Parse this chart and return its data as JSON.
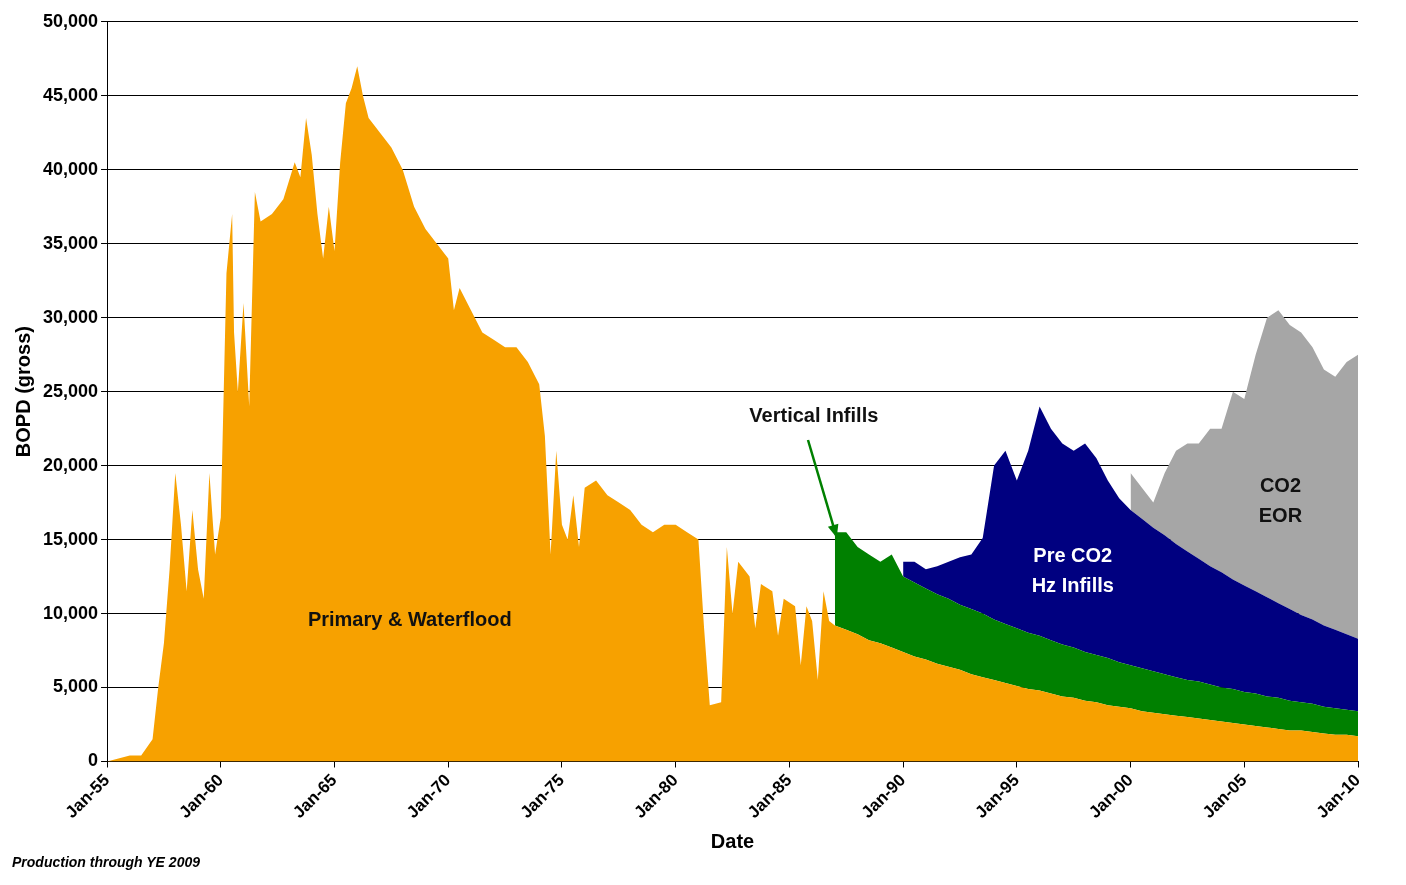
{
  "chart_data": {
    "type": "area",
    "stacked": true,
    "xlabel": "Date",
    "ylabel": "BOPD (gross)",
    "grid": "y",
    "legend": false,
    "xlim": [
      "1955-01",
      "2010-01"
    ],
    "ylim": [
      0,
      50000
    ],
    "xticks": [
      {
        "value": "1955-01",
        "label": "Jan-55"
      },
      {
        "value": "1960-01",
        "label": "Jan-60"
      },
      {
        "value": "1965-01",
        "label": "Jan-65"
      },
      {
        "value": "1970-01",
        "label": "Jan-70"
      },
      {
        "value": "1975-01",
        "label": "Jan-75"
      },
      {
        "value": "1980-01",
        "label": "Jan-80"
      },
      {
        "value": "1985-01",
        "label": "Jan-85"
      },
      {
        "value": "1990-01",
        "label": "Jan-90"
      },
      {
        "value": "1995-01",
        "label": "Jan-95"
      },
      {
        "value": "2000-01",
        "label": "Jan-00"
      },
      {
        "value": "2005-01",
        "label": "Jan-05"
      },
      {
        "value": "2010-01",
        "label": "Jan-10"
      }
    ],
    "yticks": [
      0,
      {
        "value": 5000,
        "label": "5,000"
      },
      {
        "value": 10000,
        "label": "10,000"
      },
      {
        "value": 15000,
        "label": "15,000"
      },
      {
        "value": 20000,
        "label": "20,000"
      },
      {
        "value": 25000,
        "label": "25,000"
      },
      {
        "value": 30000,
        "label": "30,000"
      },
      {
        "value": 35000,
        "label": "35,000"
      },
      {
        "value": 40000,
        "label": "40,000"
      },
      {
        "value": 45000,
        "label": "45,000"
      },
      {
        "value": 50000,
        "label": "50,000"
      }
    ],
    "annotations": [
      "Production through YE 2009"
    ],
    "x": [
      "1955-01",
      "1955-07",
      "1956-01",
      "1956-07",
      "1957-01",
      "1957-04",
      "1957-07",
      "1957-10",
      "1958-01",
      "1958-04",
      "1958-07",
      "1958-10",
      "1959-01",
      "1959-04",
      "1959-07",
      "1959-10",
      "1960-01",
      "1960-04",
      "1960-07",
      "1960-08",
      "1960-10",
      "1961-01",
      "1961-04",
      "1961-07",
      "1961-10",
      "1962-04",
      "1962-10",
      "1963-04",
      "1963-07",
      "1963-10",
      "1964-01",
      "1964-04",
      "1964-07",
      "1964-10",
      "1965-01",
      "1965-04",
      "1965-07",
      "1965-10",
      "1966-01",
      "1966-04",
      "1966-07",
      "1967-01",
      "1967-07",
      "1968-01",
      "1968-07",
      "1969-01",
      "1969-07",
      "1970-01",
      "1970-04",
      "1970-07",
      "1971-01",
      "1971-07",
      "1972-01",
      "1972-07",
      "1973-01",
      "1973-07",
      "1974-01",
      "1974-04",
      "1974-07",
      "1974-10",
      "1975-01",
      "1975-04",
      "1975-07",
      "1975-10",
      "1976-01",
      "1976-07",
      "1977-01",
      "1977-07",
      "1978-01",
      "1978-07",
      "1979-01",
      "1979-07",
      "1980-01",
      "1980-07",
      "1981-01",
      "1981-04",
      "1981-07",
      "1982-01",
      "1982-04",
      "1982-07",
      "1982-10",
      "1983-04",
      "1983-07",
      "1983-10",
      "1984-04",
      "1984-07",
      "1984-10",
      "1985-04",
      "1985-07",
      "1985-10",
      "1986-01",
      "1986-04",
      "1986-07",
      "1986-10",
      "1987-01",
      "1987-07",
      "1988-01",
      "1988-07",
      "1989-01",
      "1989-07",
      "1990-01",
      "1990-07",
      "1991-01",
      "1991-07",
      "1992-01",
      "1992-07",
      "1993-01",
      "1993-07",
      "1994-01",
      "1994-07",
      "1995-01",
      "1995-07",
      "1996-01",
      "1996-07",
      "1997-01",
      "1997-07",
      "1998-01",
      "1998-07",
      "1999-01",
      "1999-07",
      "2000-01",
      "2000-07",
      "2001-01",
      "2001-07",
      "2002-01",
      "2002-07",
      "2003-01",
      "2003-07",
      "2004-01",
      "2004-07",
      "2005-01",
      "2005-07",
      "2006-01",
      "2006-07",
      "2007-01",
      "2007-07",
      "2008-01",
      "2008-07",
      "2009-01",
      "2009-07",
      "2010-01"
    ],
    "series": [
      {
        "name": "Primary & Waterflood",
        "color": "#f7a100",
        "values": [
          0,
          200,
          400,
          400,
          1500,
          5000,
          8000,
          13000,
          19500,
          16000,
          11500,
          17000,
          13000,
          11000,
          19500,
          14000,
          16500,
          33000,
          37000,
          29000,
          25000,
          31000,
          24000,
          38500,
          36500,
          37000,
          38000,
          40500,
          39500,
          43500,
          41000,
          37000,
          34000,
          37500,
          34500,
          40500,
          44500,
          45500,
          47000,
          45000,
          43500,
          42500,
          41500,
          40000,
          37500,
          36000,
          35000,
          34000,
          30500,
          32000,
          30500,
          29000,
          28500,
          28000,
          28000,
          27000,
          25500,
          22000,
          14000,
          21000,
          16000,
          15000,
          18000,
          14500,
          18500,
          19000,
          18000,
          17500,
          17000,
          16000,
          15500,
          16000,
          16000,
          15500,
          15000,
          9000,
          3800,
          4000,
          14500,
          10000,
          13500,
          12500,
          9000,
          12000,
          11500,
          8500,
          11000,
          10500,
          6500,
          10500,
          9500,
          5500,
          11500,
          9500,
          9200,
          8900,
          8600,
          8200,
          8000,
          7700,
          7400,
          7100,
          6900,
          6600,
          6400,
          6200,
          5900,
          5700,
          5500,
          5300,
          5100,
          4900,
          4800,
          4600,
          4400,
          4300,
          4100,
          4000,
          3800,
          3700,
          3600,
          3400,
          3300,
          3200,
          3100,
          3000,
          2900,
          2800,
          2700,
          2600,
          2500,
          2400,
          2300,
          2200,
          2100,
          2100,
          2000,
          1900,
          1800,
          1800,
          1700
        ]
      },
      {
        "name": "Vertical Infills",
        "color": "#008000",
        "values": [
          null,
          null,
          null,
          null,
          null,
          null,
          null,
          null,
          null,
          null,
          null,
          null,
          null,
          null,
          null,
          null,
          null,
          null,
          null,
          null,
          null,
          null,
          null,
          null,
          null,
          null,
          null,
          null,
          null,
          null,
          null,
          null,
          null,
          null,
          null,
          null,
          null,
          null,
          null,
          null,
          null,
          null,
          null,
          null,
          null,
          null,
          null,
          null,
          null,
          null,
          null,
          null,
          null,
          null,
          null,
          null,
          null,
          null,
          null,
          null,
          null,
          null,
          null,
          null,
          null,
          null,
          null,
          null,
          null,
          null,
          null,
          null,
          null,
          null,
          null,
          null,
          null,
          null,
          null,
          null,
          null,
          null,
          null,
          null,
          null,
          null,
          null,
          null,
          null,
          null,
          null,
          null,
          null,
          null,
          6300,
          6600,
          5900,
          5800,
          5500,
          6300,
          5100,
          5000,
          4800,
          4700,
          4600,
          4400,
          4400,
          4300,
          4100,
          4000,
          3900,
          3800,
          3700,
          3600,
          3500,
          3400,
          3300,
          3200,
          3200,
          3000,
          2900,
          2900,
          2800,
          2700,
          2600,
          2500,
          2500,
          2400,
          2300,
          2300,
          2200,
          2200,
          2100,
          2100,
          2000,
          1900,
          1900,
          1800,
          1800,
          1700,
          1700
        ]
      },
      {
        "name": "Pre CO2\nHz Infills",
        "color": "#000080",
        "values": [
          null,
          null,
          null,
          null,
          null,
          null,
          null,
          null,
          null,
          null,
          null,
          null,
          null,
          null,
          null,
          null,
          null,
          null,
          null,
          null,
          null,
          null,
          null,
          null,
          null,
          null,
          null,
          null,
          null,
          null,
          null,
          null,
          null,
          null,
          null,
          null,
          null,
          null,
          null,
          null,
          null,
          null,
          null,
          null,
          null,
          null,
          null,
          null,
          null,
          null,
          null,
          null,
          null,
          null,
          null,
          null,
          null,
          null,
          null,
          null,
          null,
          null,
          null,
          null,
          null,
          null,
          null,
          null,
          null,
          null,
          null,
          null,
          null,
          null,
          null,
          null,
          null,
          null,
          null,
          null,
          null,
          null,
          null,
          null,
          null,
          null,
          null,
          null,
          null,
          null,
          null,
          null,
          null,
          null,
          null,
          null,
          null,
          null,
          null,
          null,
          1000,
          1400,
          1300,
          1900,
          2500,
          3200,
          3700,
          5100,
          10400,
          11700,
          10000,
          12300,
          15500,
          14300,
          13600,
          13300,
          14100,
          13300,
          12000,
          11100,
          10500,
          10100,
          9700,
          9400,
          9000,
          8700,
          8300,
          8000,
          7800,
          7400,
          7200,
          6900,
          6700,
          6400,
          6200,
          5900,
          5700,
          5500,
          5300,
          5100,
          4900
        ]
      },
      {
        "name": "CO2\nEOR",
        "color": "#a6a6a6",
        "values": [
          null,
          null,
          null,
          null,
          null,
          null,
          null,
          null,
          null,
          null,
          null,
          null,
          null,
          null,
          null,
          null,
          null,
          null,
          null,
          null,
          null,
          null,
          null,
          null,
          null,
          null,
          null,
          null,
          null,
          null,
          null,
          null,
          null,
          null,
          null,
          null,
          null,
          null,
          null,
          null,
          null,
          null,
          null,
          null,
          null,
          null,
          null,
          null,
          null,
          null,
          null,
          null,
          null,
          null,
          null,
          null,
          null,
          null,
          null,
          null,
          null,
          null,
          null,
          null,
          null,
          null,
          null,
          null,
          null,
          null,
          null,
          null,
          null,
          null,
          null,
          null,
          null,
          null,
          null,
          null,
          null,
          null,
          null,
          null,
          null,
          null,
          null,
          null,
          null,
          null,
          null,
          null,
          null,
          null,
          null,
          null,
          null,
          null,
          null,
          null,
          null,
          null,
          null,
          null,
          null,
          null,
          null,
          null,
          null,
          null,
          null,
          null,
          null,
          null,
          null,
          null,
          null,
          null,
          null,
          null,
          2500,
          2100,
          1700,
          4200,
          6300,
          7300,
          7800,
          9300,
          9700,
          12700,
          12600,
          16000,
          18900,
          19800,
          19200,
          19100,
          18400,
          17300,
          17100,
          18400,
          19200
        ]
      }
    ]
  }
}
